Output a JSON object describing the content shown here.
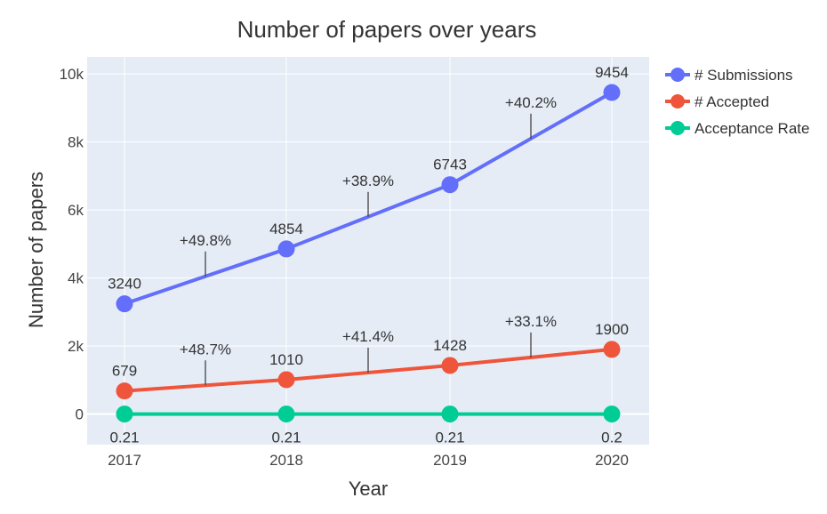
{
  "chart_data": {
    "type": "line",
    "title": "Number of papers over years",
    "xlabel": "Year",
    "ylabel": "Number of papers",
    "categories": [
      "2017",
      "2018",
      "2019",
      "2020"
    ],
    "ylim": [
      -900,
      10500
    ],
    "yticks": [
      0,
      2000,
      4000,
      6000,
      8000,
      10000
    ],
    "ytick_labels": [
      "0",
      "2k",
      "4k",
      "6k",
      "8k",
      "10k"
    ],
    "grid": true,
    "legend_position": "right",
    "plot_background": "#e5ecf6",
    "series": [
      {
        "name": "# Submissions",
        "color": "#636efa",
        "values": [
          3240,
          4854,
          6743,
          9454
        ],
        "labels": [
          "3240",
          "4854",
          "6743",
          "9454"
        ]
      },
      {
        "name": "# Accepted",
        "color": "#ef553b",
        "values": [
          679,
          1010,
          1428,
          1900
        ],
        "labels": [
          "679",
          "1010",
          "1428",
          "1900"
        ]
      },
      {
        "name": "Acceptance Rate",
        "color": "#00cc96",
        "values": [
          0.21,
          0.21,
          0.21,
          0.2
        ],
        "labels": [
          "0.21",
          "0.21",
          "0.21",
          "0.2"
        ]
      }
    ],
    "annotations": [
      {
        "series": 0,
        "segment": 0,
        "text": "+49.8%"
      },
      {
        "series": 0,
        "segment": 1,
        "text": "+38.9%"
      },
      {
        "series": 0,
        "segment": 2,
        "text": "+40.2%"
      },
      {
        "series": 1,
        "segment": 0,
        "text": "+48.7%"
      },
      {
        "series": 1,
        "segment": 1,
        "text": "+41.4%"
      },
      {
        "series": 1,
        "segment": 2,
        "text": "+33.1%"
      }
    ]
  }
}
